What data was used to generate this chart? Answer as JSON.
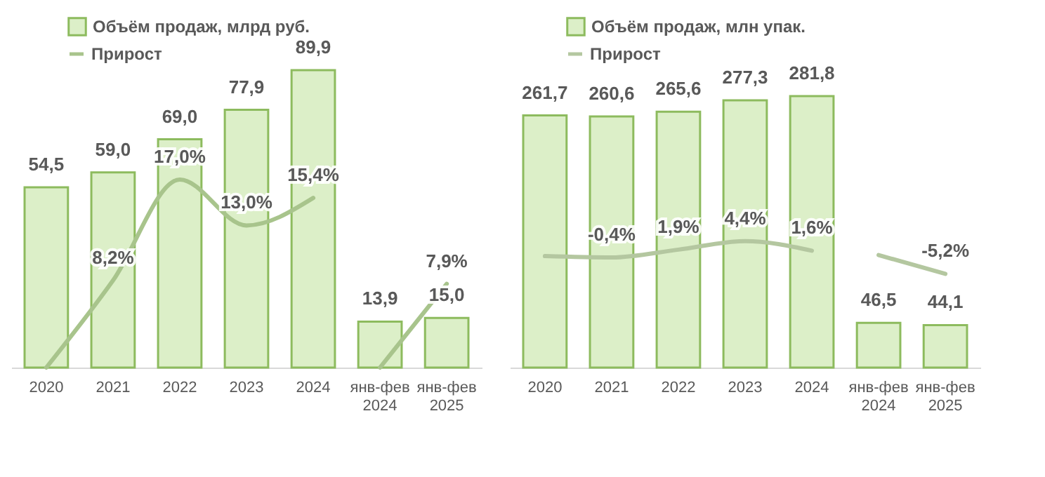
{
  "chart_data": [
    {
      "type": "bar",
      "categories": [
        "2020",
        "2021",
        "2022",
        "2023",
        "2024",
        "янв-фев 2024",
        "янв-фев 2025"
      ],
      "ylim": [
        0,
        106
      ],
      "y2lim": [
        0.6,
        31.2
      ],
      "legend": "top left",
      "tick_labels": "x",
      "grid": false,
      "series": [
        {
          "name": "Объём продаж, млрд руб.",
          "color": "#dcefc8",
          "values": [
            54.5,
            59.0,
            69.0,
            77.9,
            89.9,
            13.9,
            15.0
          ],
          "value_labels": [
            "54,5",
            "59,0",
            "69,0",
            "77,9",
            "89,9",
            "13,9",
            "15,0"
          ]
        },
        {
          "name": "Прирост",
          "type": "line",
          "axis": "y2",
          "color": "#a8c48c",
          "values": [
            0.6,
            8.2,
            17.0,
            13.0,
            15.4,
            null,
            null
          ],
          "value_labels": [
            null,
            "8,2%",
            "17,0%",
            "13,0%",
            "15,4%",
            null,
            null
          ]
        },
        {
          "type": "line",
          "axis": "y2",
          "color": "#a8c48c",
          "values": [
            null,
            null,
            null,
            null,
            null,
            0.6,
            7.9
          ],
          "value_labels": [
            null,
            null,
            null,
            null,
            null,
            null,
            "7,9%"
          ]
        }
      ]
    },
    {
      "type": "bar",
      "categories": [
        "2020",
        "2021",
        "2022",
        "2023",
        "2024",
        "янв-фев 2024",
        "янв-фев 2025"
      ],
      "ylim": [
        0,
        364
      ],
      "y2lim": [
        -32.7,
        70.2
      ],
      "legend": "top left",
      "tick_labels": "x",
      "grid": false,
      "series": [
        {
          "name": "Объём продаж, млн упак.",
          "color": "#dcefc8",
          "values": [
            261.7,
            260.6,
            265.6,
            277.3,
            281.8,
            46.5,
            44.1
          ],
          "value_labels": [
            "261,7",
            "260,6",
            "265,6",
            "277,3",
            "281,8",
            "46,5",
            "44,1"
          ]
        },
        {
          "name": "Прирост",
          "type": "line",
          "axis": "y2",
          "color": "#b4c7a0",
          "values": [
            0.0,
            -0.4,
            1.9,
            4.4,
            1.6,
            null,
            null
          ],
          "value_labels": [
            null,
            "-0,4%",
            "1,9%",
            "4,4%",
            "1,6%",
            null,
            null
          ]
        },
        {
          "type": "line",
          "axis": "y2",
          "color": "#b4c7a0",
          "values": [
            null,
            null,
            null,
            null,
            null,
            0.3,
            -5.2
          ],
          "value_labels": [
            null,
            null,
            null,
            null,
            null,
            null,
            "-5,2%"
          ]
        }
      ]
    }
  ]
}
